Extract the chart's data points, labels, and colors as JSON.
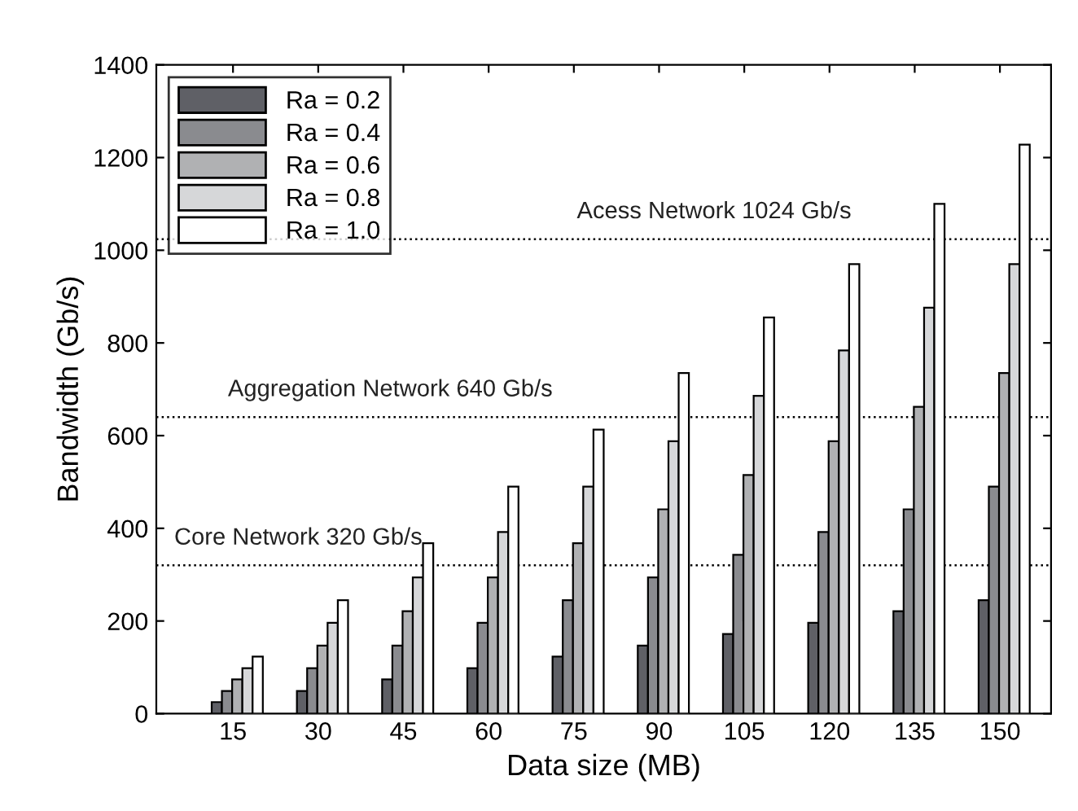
{
  "chart_data": {
    "type": "bar",
    "xlabel": "Data size (MB)",
    "ylabel": "Bandwidth (Gb/s)",
    "categories": [
      "15",
      "30",
      "45",
      "60",
      "75",
      "90",
      "105",
      "120",
      "135",
      "150"
    ],
    "series": [
      {
        "name": "Ra = 0.2",
        "color": "#5f6066",
        "values": [
          25,
          49,
          74,
          98,
          123,
          147,
          172,
          196,
          221,
          245
        ]
      },
      {
        "name": "Ra = 0.4",
        "color": "#8a8b8f",
        "values": [
          49,
          98,
          147,
          196,
          245,
          294,
          343,
          392,
          441,
          490
        ]
      },
      {
        "name": "Ra = 0.6",
        "color": "#b0b1b3",
        "values": [
          74,
          147,
          221,
          294,
          368,
          441,
          515,
          588,
          662,
          735
        ]
      },
      {
        "name": "Ra = 0.8",
        "color": "#d6d7d9",
        "values": [
          98,
          196,
          294,
          392,
          490,
          588,
          686,
          784,
          876,
          970
        ]
      },
      {
        "name": "Ra = 1.0",
        "color": "#ffffff",
        "values": [
          123,
          245,
          368,
          490,
          613,
          735,
          855,
          970,
          1100,
          1228
        ]
      }
    ],
    "ylim": [
      0,
      1400
    ],
    "yticks": [
      0,
      200,
      400,
      600,
      800,
      1000,
      1200,
      1400
    ],
    "ref_lines": [
      {
        "axis": "y",
        "value": 1024,
        "label": "Acess Network 1024 Gb/s",
        "line_style": "dotted"
      },
      {
        "axis": "y",
        "value": 640,
        "label": "Aggregation Network 640 Gb/s",
        "line_style": "dotted"
      },
      {
        "axis": "y",
        "value": 320,
        "label": "Core Network 320 Gb/s",
        "line_style": "dotted"
      }
    ],
    "legend": "top left",
    "grid": false
  }
}
